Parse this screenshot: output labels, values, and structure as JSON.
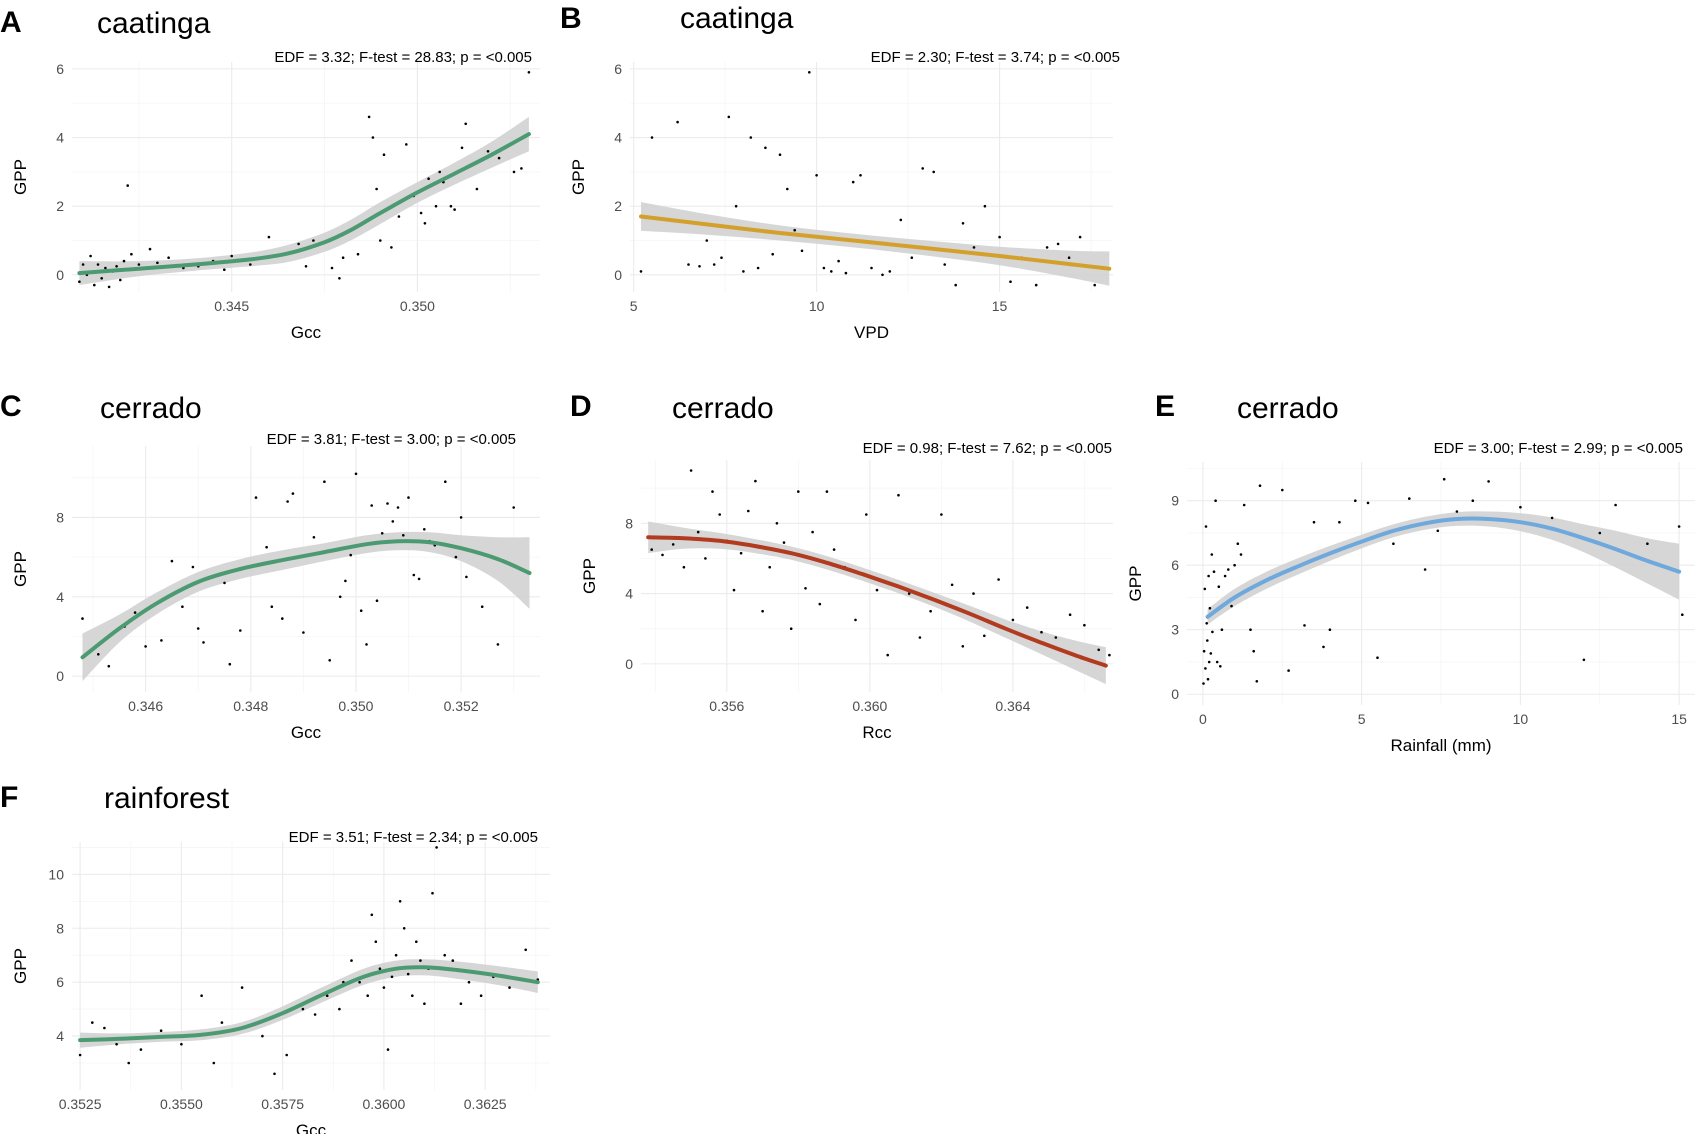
{
  "chart_data": [
    {
      "id": "A",
      "type": "scatter",
      "letter": "A",
      "title": "caatinga",
      "stats": "EDF = 3.32; F-test = 28.83; p = <0.005",
      "xlabel": "Gcc",
      "ylabel": "GPP",
      "xlim": [
        0.3407,
        0.3533
      ],
      "ylim": [
        -0.5,
        6.2
      ],
      "xticks": [
        0.345,
        0.35
      ],
      "xtick_labels": [
        "0.345",
        "0.350"
      ],
      "yticks": [
        0,
        2,
        4,
        6
      ],
      "ytick_labels": [
        "0",
        "2",
        "4",
        "6"
      ],
      "color": "#4c9a72",
      "fit": {
        "x": [
          0.3409,
          0.3425,
          0.344,
          0.3455,
          0.3465,
          0.3475,
          0.3482,
          0.349,
          0.35,
          0.351,
          0.352,
          0.353
        ],
        "y": [
          0.05,
          0.18,
          0.3,
          0.45,
          0.62,
          0.95,
          1.3,
          1.8,
          2.4,
          2.95,
          3.5,
          4.1
        ],
        "band": [
          0.35,
          0.22,
          0.18,
          0.2,
          0.25,
          0.28,
          0.3,
          0.32,
          0.3,
          0.32,
          0.38,
          0.5
        ]
      },
      "points": {
        "x": [
          0.3409,
          0.341,
          0.3411,
          0.3412,
          0.3413,
          0.3414,
          0.3415,
          0.3416,
          0.3417,
          0.3418,
          0.3419,
          0.342,
          0.3421,
          0.3422,
          0.3423,
          0.3425,
          0.3428,
          0.343,
          0.3433,
          0.3437,
          0.3441,
          0.3445,
          0.3448,
          0.345,
          0.3455,
          0.346,
          0.3468,
          0.347,
          0.3472,
          0.3477,
          0.3479,
          0.348,
          0.3484,
          0.3487,
          0.3488,
          0.3489,
          0.349,
          0.3491,
          0.3493,
          0.3495,
          0.3497,
          0.3499,
          0.3501,
          0.3502,
          0.3503,
          0.3505,
          0.3506,
          0.3507,
          0.3509,
          0.351,
          0.3512,
          0.3513,
          0.3516,
          0.3519,
          0.3522,
          0.3526,
          0.3528,
          0.353
        ],
        "y": [
          -0.2,
          0.3,
          0.0,
          0.55,
          -0.3,
          0.3,
          -0.1,
          0.2,
          -0.35,
          0.1,
          0.25,
          -0.15,
          0.4,
          2.6,
          0.6,
          0.3,
          0.75,
          0.35,
          0.5,
          0.2,
          0.25,
          0.4,
          0.15,
          0.55,
          0.3,
          1.1,
          0.9,
          0.25,
          1.0,
          0.2,
          -0.1,
          0.5,
          0.6,
          4.6,
          4.0,
          2.5,
          1.0,
          3.5,
          0.8,
          1.7,
          3.8,
          2.3,
          1.8,
          1.5,
          2.8,
          2.0,
          3.0,
          2.7,
          2.0,
          1.9,
          3.7,
          4.4,
          2.5,
          3.6,
          3.4,
          3.0,
          3.1,
          5.9
        ]
      }
    },
    {
      "id": "B",
      "type": "scatter",
      "letter": "B",
      "title": "caatinga",
      "stats": "EDF = 2.30; F-test = 3.74; p = <0.005",
      "xlabel": "VPD",
      "ylabel": "GPP",
      "xlim": [
        4.9,
        18.1
      ],
      "ylim": [
        -0.5,
        6.2
      ],
      "xticks": [
        5,
        10,
        15
      ],
      "xtick_labels": [
        "5",
        "10",
        "15"
      ],
      "yticks": [
        0,
        2,
        4,
        6
      ],
      "ytick_labels": [
        "0",
        "2",
        "4",
        "6"
      ],
      "color": "#d4a02c",
      "fit": {
        "x": [
          5.2,
          7,
          9,
          11,
          13,
          15,
          17,
          18
        ],
        "y": [
          1.7,
          1.47,
          1.22,
          1.0,
          0.78,
          0.55,
          0.3,
          0.18
        ],
        "band": [
          0.42,
          0.3,
          0.22,
          0.2,
          0.22,
          0.27,
          0.4,
          0.5
        ]
      },
      "points": {
        "x": [
          5.2,
          5.5,
          6.2,
          6.5,
          6.8,
          7.0,
          7.2,
          7.4,
          7.6,
          7.8,
          8.0,
          8.2,
          8.4,
          8.6,
          8.8,
          9.0,
          9.2,
          9.4,
          9.6,
          9.8,
          10.0,
          10.2,
          10.4,
          10.6,
          10.8,
          11.0,
          11.2,
          11.5,
          11.8,
          12.0,
          12.3,
          12.6,
          12.9,
          13.2,
          13.5,
          13.8,
          14.0,
          14.3,
          14.6,
          15.0,
          15.3,
          15.6,
          16.0,
          16.3,
          16.6,
          16.9,
          17.2,
          17.6,
          17.9
        ],
        "y": [
          0.1,
          4.0,
          4.45,
          0.3,
          0.25,
          1.0,
          0.3,
          0.5,
          4.6,
          2.0,
          0.1,
          4.0,
          0.2,
          3.7,
          0.6,
          3.5,
          2.5,
          1.3,
          0.7,
          5.9,
          2.9,
          0.2,
          0.1,
          0.4,
          0.05,
          2.7,
          2.9,
          0.2,
          0.0,
          0.1,
          1.6,
          0.5,
          3.1,
          3.0,
          0.3,
          -0.3,
          1.5,
          0.8,
          2.0,
          1.1,
          -0.2,
          0.5,
          -0.3,
          0.8,
          0.9,
          0.5,
          1.1,
          -0.3,
          0.2
        ]
      }
    },
    {
      "id": "C",
      "type": "scatter",
      "letter": "C",
      "title": "cerrado",
      "stats": "EDF = 3.81; F-test = 3.00; p = <0.005",
      "xlabel": "Gcc",
      "ylabel": "GPP",
      "xlim": [
        0.3446,
        0.3535
      ],
      "ylim": [
        -0.8,
        11.6
      ],
      "xticks": [
        0.346,
        0.348,
        0.35,
        0.352
      ],
      "xtick_labels": [
        "0.346",
        "0.348",
        "0.350",
        "0.352"
      ],
      "yticks": [
        0,
        4,
        8
      ],
      "ytick_labels": [
        "0",
        "4",
        "8"
      ],
      "color": "#4c9a72",
      "fit": {
        "x": [
          0.3448,
          0.3455,
          0.3462,
          0.347,
          0.3478,
          0.3486,
          0.3494,
          0.3502,
          0.3508,
          0.3514,
          0.352,
          0.3527,
          0.3533
        ],
        "y": [
          0.95,
          2.4,
          3.65,
          4.75,
          5.4,
          5.85,
          6.25,
          6.65,
          6.8,
          6.75,
          6.45,
          5.9,
          5.2
        ],
        "band": [
          1.2,
          0.7,
          0.55,
          0.5,
          0.5,
          0.5,
          0.45,
          0.45,
          0.45,
          0.5,
          0.65,
          1.1,
          1.8
        ]
      },
      "points": {
        "x": [
          0.3448,
          0.3451,
          0.3453,
          0.3456,
          0.3458,
          0.346,
          0.3463,
          0.3465,
          0.3467,
          0.3469,
          0.347,
          0.3471,
          0.3473,
          0.3475,
          0.3476,
          0.3478,
          0.348,
          0.3481,
          0.3483,
          0.3484,
          0.3486,
          0.3487,
          0.3488,
          0.349,
          0.3492,
          0.3494,
          0.3495,
          0.3497,
          0.3498,
          0.3499,
          0.35,
          0.3501,
          0.3502,
          0.3503,
          0.3504,
          0.3505,
          0.3506,
          0.3507,
          0.3508,
          0.3509,
          0.351,
          0.3511,
          0.3512,
          0.3513,
          0.3514,
          0.3515,
          0.3517,
          0.3519,
          0.352,
          0.3521,
          0.3524,
          0.3527,
          0.353
        ],
        "y": [
          2.9,
          1.1,
          0.5,
          2.5,
          3.2,
          1.5,
          1.8,
          5.8,
          3.5,
          5.5,
          2.4,
          1.7,
          5.0,
          4.7,
          0.6,
          2.3,
          5.5,
          9.0,
          6.5,
          3.5,
          2.9,
          8.8,
          9.2,
          2.2,
          7.0,
          9.8,
          0.8,
          4.0,
          4.8,
          6.1,
          10.2,
          3.3,
          1.6,
          8.6,
          3.8,
          7.2,
          8.7,
          7.8,
          8.5,
          7.1,
          9.0,
          5.1,
          4.9,
          7.4,
          6.8,
          6.6,
          9.8,
          6.0,
          8.0,
          5.0,
          3.5,
          1.6,
          8.5
        ]
      }
    },
    {
      "id": "D",
      "type": "scatter",
      "letter": "D",
      "title": "cerrado",
      "stats": "EDF = 0.98; F-test = 7.62; p = <0.005",
      "xlabel": "Rcc",
      "ylabel": "GPP",
      "xlim": [
        0.3536,
        0.3668
      ],
      "ylim": [
        -1.6,
        11.6
      ],
      "xticks": [
        0.356,
        0.36,
        0.364
      ],
      "xtick_labels": [
        "0.356",
        "0.360",
        "0.364"
      ],
      "yticks": [
        0,
        4,
        8
      ],
      "ytick_labels": [
        "0",
        "4",
        "8"
      ],
      "color": "#b23a1e",
      "fit": {
        "x": [
          0.3538,
          0.3548,
          0.3558,
          0.3568,
          0.3578,
          0.3588,
          0.3598,
          0.3608,
          0.3618,
          0.3628,
          0.3638,
          0.3648,
          0.3658,
          0.3666
        ],
        "y": [
          7.2,
          7.15,
          7.0,
          6.7,
          6.3,
          5.75,
          5.1,
          4.4,
          3.65,
          2.85,
          2.0,
          1.2,
          0.45,
          -0.1
        ],
        "band": [
          0.9,
          0.6,
          0.45,
          0.4,
          0.38,
          0.38,
          0.38,
          0.38,
          0.4,
          0.45,
          0.52,
          0.65,
          0.85,
          1.05
        ]
      },
      "points": {
        "x": [
          0.3539,
          0.3542,
          0.3545,
          0.3548,
          0.355,
          0.3552,
          0.3554,
          0.3556,
          0.3558,
          0.356,
          0.3562,
          0.3564,
          0.3566,
          0.3568,
          0.357,
          0.3572,
          0.3574,
          0.3576,
          0.3578,
          0.358,
          0.3582,
          0.3584,
          0.3586,
          0.3588,
          0.359,
          0.3593,
          0.3596,
          0.3599,
          0.3602,
          0.3605,
          0.3608,
          0.3611,
          0.3614,
          0.3617,
          0.362,
          0.3623,
          0.3626,
          0.3629,
          0.3632,
          0.3636,
          0.364,
          0.3644,
          0.3648,
          0.3652,
          0.3656,
          0.366,
          0.3664,
          0.3667
        ],
        "y": [
          6.5,
          6.2,
          6.8,
          5.5,
          11.0,
          7.5,
          6.0,
          9.8,
          8.5,
          7.0,
          4.2,
          6.3,
          8.7,
          10.4,
          3.0,
          5.5,
          8.0,
          6.9,
          2.0,
          9.8,
          4.3,
          7.5,
          3.4,
          9.8,
          6.5,
          5.5,
          2.5,
          8.5,
          4.2,
          0.5,
          9.6,
          4.0,
          1.5,
          3.0,
          8.5,
          4.5,
          1.0,
          4.0,
          1.6,
          4.8,
          2.5,
          3.2,
          1.8,
          1.5,
          2.8,
          2.2,
          0.8,
          0.5
        ]
      }
    },
    {
      "id": "E",
      "type": "scatter",
      "letter": "E",
      "title": "cerrado",
      "stats": "EDF = 3.00; F-test = 2.99; p = <0.005",
      "xlabel": "Rainfall (mm)",
      "ylabel": "GPP",
      "xlim": [
        -0.5,
        15.5
      ],
      "ylim": [
        -0.5,
        10.8
      ],
      "xticks": [
        0,
        5,
        10,
        15
      ],
      "xtick_labels": [
        "0",
        "5",
        "10",
        "15"
      ],
      "yticks": [
        0,
        3,
        6,
        9
      ],
      "ytick_labels": [
        "0",
        "3",
        "6",
        "9"
      ],
      "color": "#6fa8dc",
      "fit": {
        "x": [
          0.15,
          1,
          2,
          3,
          4,
          5,
          6,
          7,
          8,
          9,
          10,
          11,
          12,
          13,
          14,
          15
        ],
        "y": [
          3.6,
          4.5,
          5.3,
          5.95,
          6.55,
          7.1,
          7.6,
          7.95,
          8.15,
          8.15,
          8.0,
          7.7,
          7.25,
          6.75,
          6.2,
          5.7
        ],
        "band": [
          0.35,
          0.4,
          0.4,
          0.38,
          0.35,
          0.32,
          0.3,
          0.3,
          0.32,
          0.35,
          0.42,
          0.52,
          0.65,
          0.85,
          1.05,
          1.3
        ]
      },
      "points": {
        "x": [
          0.02,
          0.04,
          0.06,
          0.08,
          0.1,
          0.12,
          0.14,
          0.16,
          0.18,
          0.2,
          0.22,
          0.25,
          0.28,
          0.3,
          0.35,
          0.4,
          0.45,
          0.5,
          0.55,
          0.6,
          0.7,
          0.8,
          0.9,
          1.0,
          1.1,
          1.2,
          1.3,
          1.5,
          1.6,
          1.7,
          1.8,
          2.5,
          2.7,
          3.2,
          3.5,
          3.8,
          4.0,
          4.3,
          4.8,
          5.2,
          5.5,
          6.0,
          6.5,
          7.0,
          7.4,
          7.6,
          8.0,
          8.5,
          9.0,
          10.0,
          11.0,
          12.0,
          12.5,
          13.0,
          14.0,
          15.0,
          15.1
        ],
        "y": [
          0.5,
          2.0,
          4.9,
          1.2,
          7.8,
          3.3,
          2.5,
          0.7,
          5.5,
          1.5,
          4.0,
          1.9,
          6.5,
          2.9,
          5.7,
          9.0,
          1.5,
          5.0,
          1.3,
          3.0,
          5.5,
          5.8,
          4.1,
          6.0,
          7.0,
          6.5,
          8.8,
          3.0,
          2.0,
          0.6,
          9.7,
          9.5,
          1.1,
          3.2,
          8.0,
          2.2,
          3.0,
          8.0,
          9.0,
          8.9,
          1.7,
          7.0,
          9.1,
          5.8,
          7.6,
          10.0,
          8.5,
          9.0,
          9.9,
          8.7,
          8.2,
          1.6,
          7.5,
          8.8,
          7.0,
          7.8,
          3.7
        ]
      }
    },
    {
      "id": "F",
      "type": "scatter",
      "letter": "F",
      "title": "rainforest",
      "stats": "EDF = 3.51; F-test = 2.34; p = <0.005",
      "xlabel": "Gcc",
      "ylabel": "GPP",
      "xlim": [
        0.3523,
        0.3641
      ],
      "ylim": [
        2.0,
        11.2
      ],
      "xticks": [
        0.3525,
        0.355,
        0.3575,
        0.36,
        0.3625
      ],
      "xtick_labels": [
        "0.3525",
        "0.3550",
        "0.3575",
        "0.3600",
        "0.3625"
      ],
      "yticks": [
        4,
        6,
        8,
        10
      ],
      "ytick_labels": [
        "4",
        "6",
        "8",
        "10"
      ],
      "color": "#4c9a72",
      "fit": {
        "x": [
          0.3525,
          0.3535,
          0.3545,
          0.3555,
          0.3565,
          0.3575,
          0.3585,
          0.3595,
          0.3603,
          0.361,
          0.3618,
          0.3628,
          0.3638
        ],
        "y": [
          3.85,
          3.9,
          3.97,
          4.05,
          4.3,
          4.85,
          5.55,
          6.2,
          6.5,
          6.55,
          6.45,
          6.25,
          6.0
        ],
        "band": [
          0.28,
          0.2,
          0.18,
          0.2,
          0.22,
          0.25,
          0.28,
          0.3,
          0.3,
          0.3,
          0.32,
          0.35,
          0.4
        ]
      },
      "points": {
        "x": [
          0.3525,
          0.3528,
          0.3531,
          0.3534,
          0.3537,
          0.354,
          0.3545,
          0.355,
          0.3555,
          0.3558,
          0.356,
          0.3565,
          0.357,
          0.3573,
          0.3576,
          0.358,
          0.3583,
          0.3586,
          0.3589,
          0.359,
          0.3592,
          0.3594,
          0.3596,
          0.3597,
          0.3598,
          0.3599,
          0.36,
          0.3601,
          0.3602,
          0.3603,
          0.3604,
          0.3605,
          0.3606,
          0.3607,
          0.3608,
          0.3609,
          0.361,
          0.3611,
          0.3612,
          0.3613,
          0.3615,
          0.3617,
          0.3619,
          0.3621,
          0.3624,
          0.3627,
          0.3631,
          0.3635,
          0.3638
        ],
        "y": [
          3.3,
          4.5,
          4.3,
          3.7,
          3.0,
          3.5,
          4.2,
          3.7,
          5.5,
          3.0,
          4.5,
          5.8,
          4.0,
          2.6,
          3.3,
          5.0,
          4.8,
          5.5,
          5.0,
          6.0,
          6.8,
          6.0,
          5.5,
          8.5,
          7.5,
          6.5,
          5.8,
          3.5,
          6.2,
          7.0,
          9.0,
          8.0,
          6.3,
          5.5,
          7.5,
          6.8,
          5.2,
          6.5,
          9.3,
          11.0,
          7.0,
          6.8,
          5.2,
          6.0,
          5.5,
          6.2,
          5.8,
          7.2,
          6.1
        ]
      }
    }
  ]
}
